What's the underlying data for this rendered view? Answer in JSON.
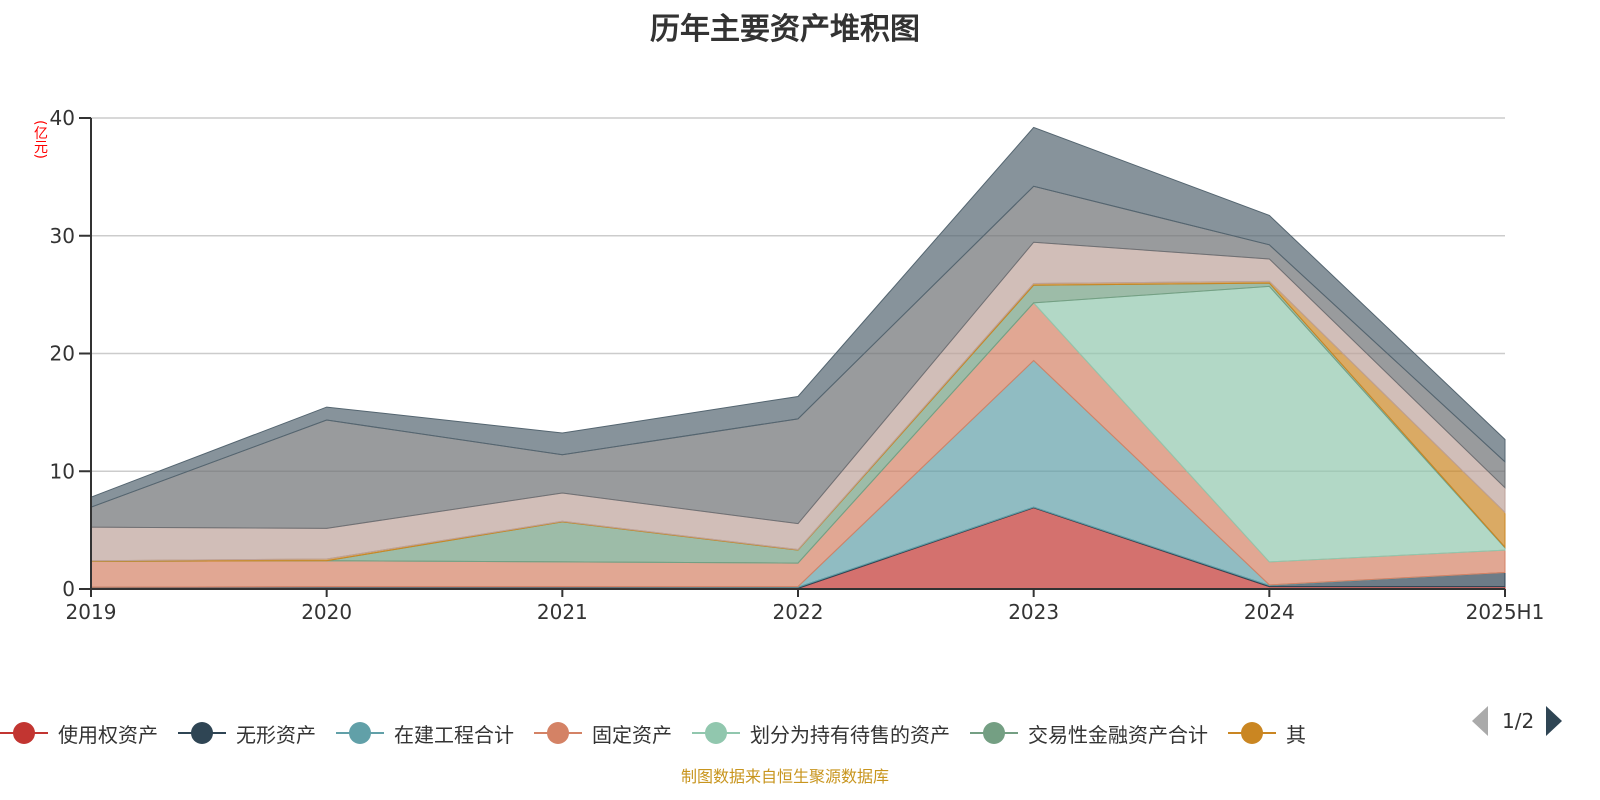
{
  "chart_data": {
    "type": "area",
    "stacked": true,
    "title": "历年主要资产堆积图",
    "ylabel": "(亿元)",
    "xlabel": "",
    "categories": [
      "2019",
      "2020",
      "2021",
      "2022",
      "2023",
      "2024",
      "2025H1"
    ],
    "ylim": [
      0,
      40
    ],
    "yticks": [
      0,
      10,
      20,
      30,
      40
    ],
    "grid": true,
    "legend_position": "bottom",
    "series": [
      {
        "name": "使用权资产",
        "color": "#c23531",
        "values": [
          0.05,
          0.05,
          0.05,
          0.05,
          6.9,
          0.2,
          0.2
        ]
      },
      {
        "name": "无形资产",
        "color": "#2f4554",
        "values": [
          0.1,
          0.15,
          0.15,
          0.1,
          0.05,
          0.1,
          1.2
        ]
      },
      {
        "name": "在建工程合计",
        "color": "#61a0a8",
        "values": [
          0,
          0,
          0,
          0.05,
          12.45,
          0.05,
          0
        ]
      },
      {
        "name": "固定资产",
        "color": "#d48265",
        "values": [
          2.2,
          2.2,
          2.1,
          2.0,
          4.9,
          1.95,
          1.9
        ]
      },
      {
        "name": "划分为持有待售的资产",
        "color": "#91c7ae",
        "values": [
          0,
          0,
          0,
          0,
          0,
          23.4,
          0.2
        ]
      },
      {
        "name": "交易性金融资产合计",
        "color": "#749f83",
        "values": [
          0,
          0,
          3.4,
          1.1,
          1.5,
          0.28,
          0.05
        ]
      },
      {
        "name": "其",
        "color": "#ca8622",
        "values": [
          0.05,
          0.15,
          0.05,
          0.05,
          0.15,
          0.15,
          2.95
        ]
      },
      {
        "color": "#bda29a",
        "values": [
          2.85,
          2.6,
          2.4,
          2.2,
          3.5,
          1.9,
          2.1
        ]
      },
      {
        "color": "#6e7074",
        "values": [
          1.7,
          9.2,
          3.25,
          8.9,
          4.75,
          1.2,
          2.2
        ]
      },
      {
        "color": "#546570",
        "values": [
          0.85,
          1.1,
          1.85,
          1.9,
          5.0,
          2.5,
          1.9
        ]
      }
    ]
  },
  "legend": {
    "page": "1/2"
  },
  "source": "制图数据来自恒生聚源数据库"
}
